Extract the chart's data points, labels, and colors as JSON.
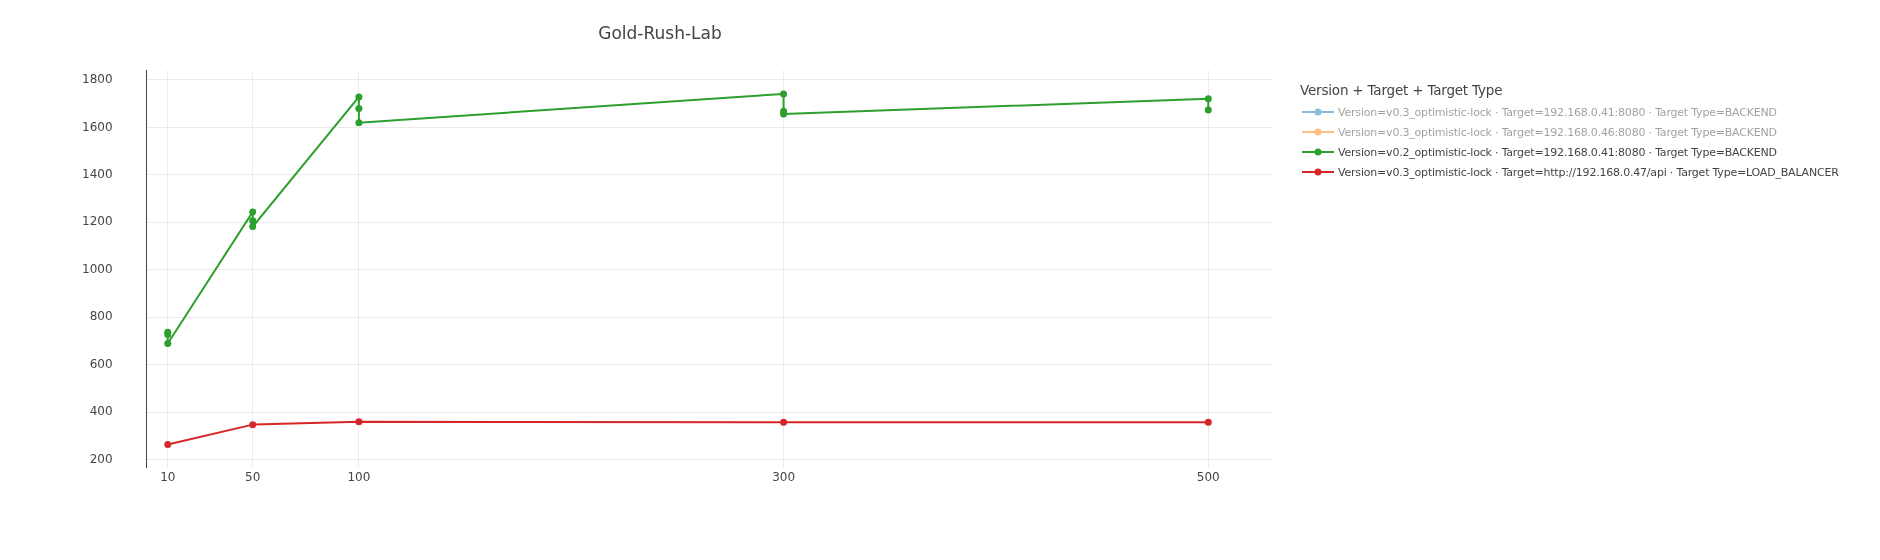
{
  "chart_data": {
    "type": "line",
    "title": "Gold-Rush-Lab",
    "legend_title": "Version + Target + Target Type",
    "series": [
      {
        "name": "Version=v0.3_optimistic-lock · Target=192.168.0.41:8080 · Target Type=BACKEND",
        "color": "#1f77b4"
      },
      {
        "name": "Version=v0.3_optimistic-lock · Target=192.168.0.46:8080 · Target Type=BACKEND",
        "color": "#ff7f0e"
      },
      {
        "name": "Version=v0.2_optimistic-lock · Target=192.168.0.41:8080 · Target Type=BACKEND",
        "color": "#2ca02c",
        "x": [
          10,
          10,
          10,
          50,
          50,
          50,
          100,
          100,
          100,
          300,
          300,
          300,
          500,
          500
        ],
        "values": [
          737,
          728,
          690,
          1244,
          1207,
          1182,
          1728,
          1680,
          1620,
          1741,
          1668,
          1656,
          1721,
          1673
        ]
      },
      {
        "name": "Version=v0.3_optimistic-lock · Target=http://192.168.0.47/api · Target Type=LOAD_BALANCER",
        "color": "#d62728",
        "x": [
          10,
          50,
          100,
          300,
          500
        ],
        "values": [
          264,
          348,
          360,
          358,
          358
        ]
      }
    ],
    "xlim": [
      0,
      530
    ],
    "xticks": [
      10,
      50,
      100,
      300,
      500
    ],
    "ylim": [
      167,
      1840
    ],
    "yticks": [
      200,
      400,
      600,
      800,
      1000,
      1200,
      1400,
      1600,
      1800
    ],
    "grid": true,
    "legend": "top right",
    "marker": "circle",
    "line_style": "solid"
  }
}
